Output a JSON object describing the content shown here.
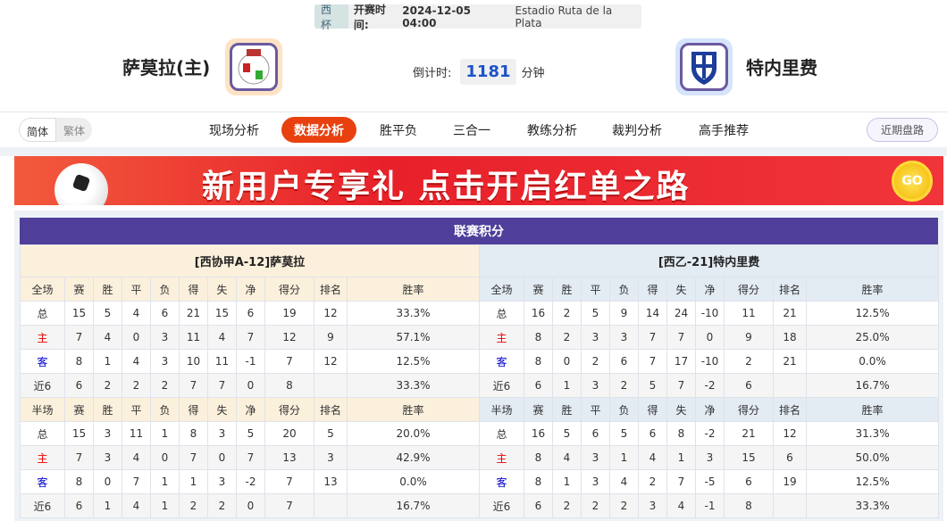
{
  "match": {
    "cup": "西杯",
    "time_label": "开赛时间:",
    "time": "2024-12-05 04:00",
    "venue": "Estadio Ruta de la Plata"
  },
  "home": {
    "name": "萨莫拉(主)"
  },
  "away": {
    "name": "特内里费"
  },
  "countdown": {
    "label": "倒计时:",
    "value": "1181",
    "unit": "分钟"
  },
  "lang": {
    "simplified": "简体",
    "traditional": "繁体"
  },
  "tabs": [
    "现场分析",
    "数据分析",
    "胜平负",
    "三合一",
    "教练分析",
    "裁判分析",
    "高手推荐"
  ],
  "active_tab": "数据分析",
  "recent_label": "近期盘路",
  "banner": {
    "text": "新用户专享礼  点击开启红单之路",
    "go": "GO"
  },
  "colors": {
    "accent": "#e8410f",
    "title_bar": "#4f3f9a",
    "home_red": "#e00000",
    "away_blue": "#0000cc"
  },
  "standings": {
    "title": "联赛积分",
    "tables": [
      {
        "caption": "[西协甲A-12]萨莫拉",
        "full_header": [
          "全场",
          "赛",
          "胜",
          "平",
          "负",
          "得",
          "失",
          "净",
          "得分",
          "排名",
          "胜率"
        ],
        "full_rows": [
          [
            "总",
            "15",
            "5",
            "4",
            "6",
            "21",
            "15",
            "6",
            "19",
            "12",
            "33.3%"
          ],
          [
            "主",
            "7",
            "4",
            "0",
            "3",
            "11",
            "4",
            "7",
            "12",
            "9",
            "57.1%"
          ],
          [
            "客",
            "8",
            "1",
            "4",
            "3",
            "10",
            "11",
            "-1",
            "7",
            "12",
            "12.5%"
          ],
          [
            "近6",
            "6",
            "2",
            "2",
            "2",
            "7",
            "7",
            "0",
            "8",
            "",
            "33.3%"
          ]
        ],
        "half_header": [
          "半场",
          "赛",
          "胜",
          "平",
          "负",
          "得",
          "失",
          "净",
          "得分",
          "排名",
          "胜率"
        ],
        "half_rows": [
          [
            "总",
            "15",
            "3",
            "11",
            "1",
            "8",
            "3",
            "5",
            "20",
            "5",
            "20.0%"
          ],
          [
            "主",
            "7",
            "3",
            "4",
            "0",
            "7",
            "0",
            "7",
            "13",
            "3",
            "42.9%"
          ],
          [
            "客",
            "8",
            "0",
            "7",
            "1",
            "1",
            "3",
            "-2",
            "7",
            "13",
            "0.0%"
          ],
          [
            "近6",
            "6",
            "1",
            "4",
            "1",
            "2",
            "2",
            "0",
            "7",
            "",
            "16.7%"
          ]
        ]
      },
      {
        "caption": "[西乙-21]特内里费",
        "full_header": [
          "全场",
          "赛",
          "胜",
          "平",
          "负",
          "得",
          "失",
          "净",
          "得分",
          "排名",
          "胜率"
        ],
        "full_rows": [
          [
            "总",
            "16",
            "2",
            "5",
            "9",
            "14",
            "24",
            "-10",
            "11",
            "21",
            "12.5%"
          ],
          [
            "主",
            "8",
            "2",
            "3",
            "3",
            "7",
            "7",
            "0",
            "9",
            "18",
            "25.0%"
          ],
          [
            "客",
            "8",
            "0",
            "2",
            "6",
            "7",
            "17",
            "-10",
            "2",
            "21",
            "0.0%"
          ],
          [
            "近6",
            "6",
            "1",
            "3",
            "2",
            "5",
            "7",
            "-2",
            "6",
            "",
            "16.7%"
          ]
        ],
        "half_header": [
          "半场",
          "赛",
          "胜",
          "平",
          "负",
          "得",
          "失",
          "净",
          "得分",
          "排名",
          "胜率"
        ],
        "half_rows": [
          [
            "总",
            "16",
            "5",
            "6",
            "5",
            "6",
            "8",
            "-2",
            "21",
            "12",
            "31.3%"
          ],
          [
            "主",
            "8",
            "4",
            "3",
            "1",
            "4",
            "1",
            "3",
            "15",
            "6",
            "50.0%"
          ],
          [
            "客",
            "8",
            "1",
            "3",
            "4",
            "2",
            "7",
            "-5",
            "6",
            "19",
            "12.5%"
          ],
          [
            "近6",
            "6",
            "2",
            "2",
            "2",
            "3",
            "4",
            "-1",
            "8",
            "",
            "33.3%"
          ]
        ]
      }
    ]
  }
}
